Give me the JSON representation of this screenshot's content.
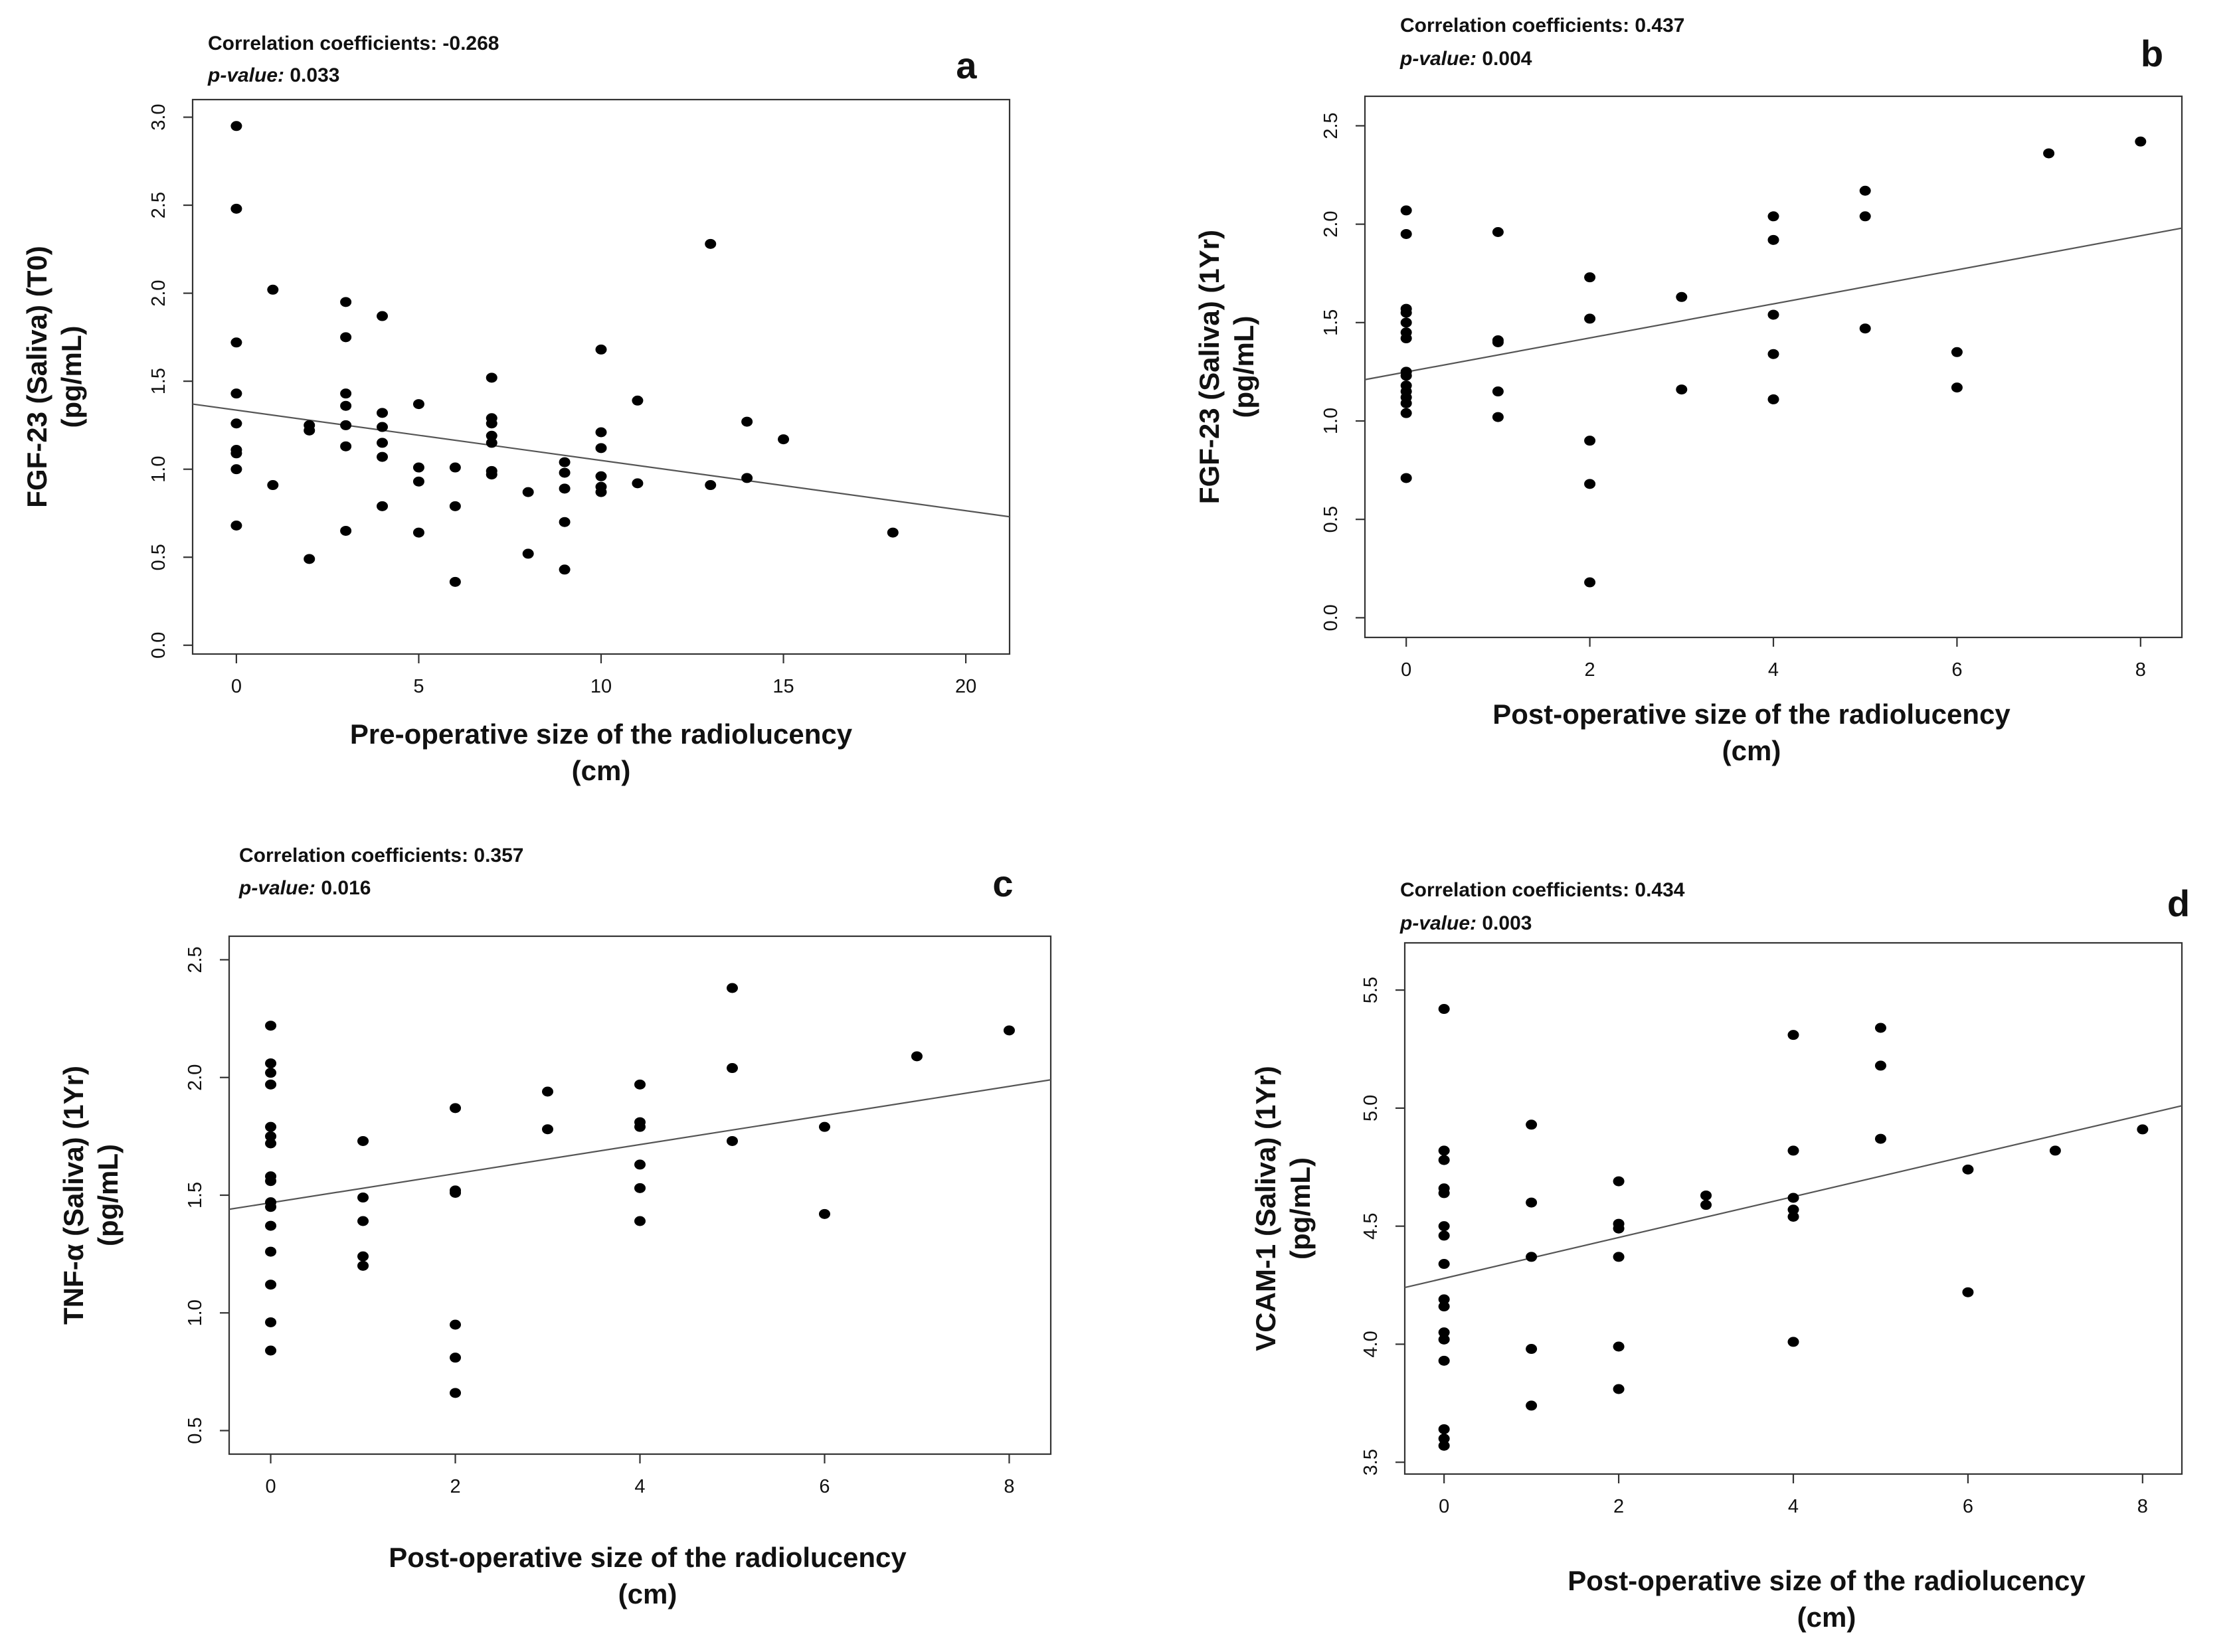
{
  "chart_data": [
    {
      "panel": "a",
      "type": "scatter",
      "stat_line1_label": "Correlation coefficients:",
      "stat_line1_value": "-0.268",
      "stat_line2_label": "p-value:",
      "stat_line2_value": "0.033",
      "ylabel_line1": "FGF-23 (Saliva) (T0)",
      "ylabel_line2": "(pg/mL)",
      "xlabel_line1": "Pre-operative size of the radiolucency",
      "xlabel_line2": "(cm)",
      "xlim": [
        -1.2,
        21.2
      ],
      "ylim": [
        -0.05,
        3.1
      ],
      "xticks": [
        0,
        5,
        10,
        15,
        20
      ],
      "xtick_labels": [
        "0",
        "5",
        "10",
        "15",
        "20"
      ],
      "yticks": [
        0.0,
        0.5,
        1.0,
        1.5,
        2.0,
        2.5,
        3.0
      ],
      "ytick_labels": [
        "0.0",
        "0.5",
        "1.0",
        "1.5",
        "2.0",
        "2.5",
        "3.0"
      ],
      "trend": {
        "x": [
          -1.2,
          21.2
        ],
        "y": [
          1.37,
          0.73
        ]
      },
      "points": [
        [
          0,
          2.95
        ],
        [
          0,
          2.48
        ],
        [
          0,
          1.72
        ],
        [
          0,
          1.43
        ],
        [
          0,
          1.26
        ],
        [
          0,
          1.11
        ],
        [
          0,
          1.09
        ],
        [
          0,
          1.0
        ],
        [
          0,
          0.68
        ],
        [
          1,
          2.02
        ],
        [
          1,
          0.91
        ],
        [
          2,
          1.25
        ],
        [
          2,
          1.22
        ],
        [
          2,
          0.49
        ],
        [
          3,
          1.95
        ],
        [
          3,
          1.75
        ],
        [
          3,
          1.43
        ],
        [
          3,
          1.36
        ],
        [
          3,
          1.25
        ],
        [
          3,
          1.13
        ],
        [
          3,
          0.65
        ],
        [
          4,
          1.87
        ],
        [
          4,
          1.32
        ],
        [
          4,
          1.24
        ],
        [
          4,
          1.15
        ],
        [
          4,
          1.07
        ],
        [
          4,
          0.79
        ],
        [
          5,
          1.37
        ],
        [
          5,
          1.01
        ],
        [
          5,
          0.93
        ],
        [
          5,
          0.64
        ],
        [
          6,
          1.01
        ],
        [
          6,
          0.79
        ],
        [
          6,
          0.36
        ],
        [
          7,
          1.52
        ],
        [
          7,
          1.29
        ],
        [
          7,
          1.26
        ],
        [
          7,
          1.19
        ],
        [
          7,
          1.15
        ],
        [
          7,
          0.99
        ],
        [
          7,
          0.97
        ],
        [
          8,
          0.87
        ],
        [
          8,
          0.52
        ],
        [
          9,
          1.04
        ],
        [
          9,
          0.98
        ],
        [
          9,
          0.89
        ],
        [
          9,
          0.7
        ],
        [
          9,
          0.43
        ],
        [
          10,
          1.68
        ],
        [
          10,
          1.21
        ],
        [
          10,
          1.12
        ],
        [
          10,
          0.96
        ],
        [
          10,
          0.9
        ],
        [
          10,
          0.87
        ],
        [
          11,
          1.39
        ],
        [
          11,
          0.92
        ],
        [
          13,
          2.28
        ],
        [
          13,
          0.91
        ],
        [
          14,
          1.27
        ],
        [
          14,
          0.95
        ],
        [
          15,
          1.17
        ],
        [
          18,
          0.64
        ]
      ]
    },
    {
      "panel": "b",
      "type": "scatter",
      "stat_line1_label": "Correlation coefficients:",
      "stat_line1_value": "0.437",
      "stat_line2_label": "p-value:",
      "stat_line2_value": "0.004",
      "ylabel_line1": "FGF-23 (Saliva) (1Yr)",
      "ylabel_line2": "(pg/mL)",
      "xlabel_line1": "Post-operative size of the radiolucency",
      "xlabel_line2": "(cm)",
      "xlim": [
        -0.45,
        8.45
      ],
      "ylim": [
        -0.1,
        2.65
      ],
      "xticks": [
        0,
        2,
        4,
        6,
        8
      ],
      "xtick_labels": [
        "0",
        "2",
        "4",
        "6",
        "8"
      ],
      "yticks": [
        0.0,
        0.5,
        1.0,
        1.5,
        2.0,
        2.5
      ],
      "ytick_labels": [
        "0.0",
        "0.5",
        "1.0",
        "1.5",
        "2.0",
        "2.5"
      ],
      "trend": {
        "x": [
          -0.45,
          8.45
        ],
        "y": [
          1.21,
          1.98
        ]
      },
      "points": [
        [
          0,
          2.07
        ],
        [
          0,
          1.95
        ],
        [
          0,
          1.57
        ],
        [
          0,
          1.55
        ],
        [
          0,
          1.5
        ],
        [
          0,
          1.45
        ],
        [
          0,
          1.42
        ],
        [
          0,
          1.25
        ],
        [
          0,
          1.23
        ],
        [
          0,
          1.18
        ],
        [
          0,
          1.15
        ],
        [
          0,
          1.12
        ],
        [
          0,
          1.09
        ],
        [
          0,
          1.04
        ],
        [
          0,
          0.71
        ],
        [
          1,
          1.96
        ],
        [
          1,
          1.41
        ],
        [
          1,
          1.4
        ],
        [
          1,
          1.15
        ],
        [
          1,
          1.02
        ],
        [
          2,
          1.73
        ],
        [
          2,
          1.52
        ],
        [
          2,
          0.9
        ],
        [
          2,
          0.68
        ],
        [
          2,
          0.18
        ],
        [
          3,
          1.63
        ],
        [
          3,
          1.16
        ],
        [
          4,
          2.04
        ],
        [
          4,
          1.92
        ],
        [
          4,
          1.54
        ],
        [
          4,
          1.34
        ],
        [
          4,
          1.11
        ],
        [
          5,
          2.17
        ],
        [
          5,
          2.04
        ],
        [
          5,
          1.47
        ],
        [
          6,
          1.35
        ],
        [
          6,
          1.17
        ],
        [
          7,
          2.36
        ],
        [
          8,
          2.42
        ]
      ]
    },
    {
      "panel": "c",
      "type": "scatter",
      "stat_line1_label": "Correlation coefficients:",
      "stat_line1_value": "0.357",
      "stat_line2_label": "p-value:",
      "stat_line2_value": "0.016",
      "ylabel_line1": "TNF-α (Saliva) (1Yr)",
      "ylabel_line2": "(pg/mL)",
      "xlabel_line1": "Post-operative size of the radiolucency",
      "xlabel_line2": "(cm)",
      "xlim": [
        -0.45,
        8.45
      ],
      "ylim": [
        0.4,
        2.6
      ],
      "xticks": [
        0,
        2,
        4,
        6,
        8
      ],
      "xtick_labels": [
        "0",
        "2",
        "4",
        "6",
        "8"
      ],
      "yticks": [
        0.5,
        1.0,
        1.5,
        2.0,
        2.5
      ],
      "ytick_labels": [
        "0.5",
        "1.0",
        "1.5",
        "2.0",
        "2.5"
      ],
      "trend": {
        "x": [
          -0.45,
          8.45
        ],
        "y": [
          1.44,
          1.99
        ]
      },
      "points": [
        [
          0,
          2.22
        ],
        [
          0,
          2.06
        ],
        [
          0,
          2.02
        ],
        [
          0,
          1.97
        ],
        [
          0,
          1.79
        ],
        [
          0,
          1.75
        ],
        [
          0,
          1.72
        ],
        [
          0,
          1.58
        ],
        [
          0,
          1.56
        ],
        [
          0,
          1.47
        ],
        [
          0,
          1.45
        ],
        [
          0,
          1.37
        ],
        [
          0,
          1.26
        ],
        [
          0,
          1.12
        ],
        [
          0,
          0.96
        ],
        [
          0,
          0.84
        ],
        [
          1,
          1.73
        ],
        [
          1,
          1.49
        ],
        [
          1,
          1.39
        ],
        [
          1,
          1.24
        ],
        [
          1,
          1.2
        ],
        [
          2,
          1.87
        ],
        [
          2,
          1.52
        ],
        [
          2,
          1.51
        ],
        [
          2,
          0.95
        ],
        [
          2,
          0.81
        ],
        [
          2,
          0.66
        ],
        [
          3,
          1.94
        ],
        [
          3,
          1.78
        ],
        [
          4,
          1.97
        ],
        [
          4,
          1.81
        ],
        [
          4,
          1.79
        ],
        [
          4,
          1.63
        ],
        [
          4,
          1.53
        ],
        [
          4,
          1.39
        ],
        [
          5,
          2.38
        ],
        [
          5,
          2.04
        ],
        [
          5,
          1.73
        ],
        [
          6,
          1.79
        ],
        [
          6,
          1.42
        ],
        [
          7,
          2.09
        ],
        [
          8,
          2.2
        ]
      ]
    },
    {
      "panel": "d",
      "type": "scatter",
      "stat_line1_label": "Correlation coefficients:",
      "stat_line1_value": "0.434",
      "stat_line2_label": "p-value:",
      "stat_line2_value": "0.003",
      "ylabel_line1": "VCAM-1 (Saliva) (1Yr)",
      "ylabel_line2": "(pg/mL)",
      "xlabel_line1": "Post-operative size of the radiolucency",
      "xlabel_line2": "(cm)",
      "xlim": [
        -0.45,
        8.45
      ],
      "ylim": [
        3.45,
        5.7
      ],
      "xticks": [
        0,
        2,
        4,
        6,
        8
      ],
      "xtick_labels": [
        "0",
        "2",
        "4",
        "6",
        "8"
      ],
      "yticks": [
        3.5,
        4.0,
        4.5,
        5.0,
        5.5
      ],
      "ytick_labels": [
        "3.5",
        "4.0",
        "4.5",
        "5.0",
        "5.5"
      ],
      "trend": {
        "x": [
          -0.45,
          8.45
        ],
        "y": [
          4.24,
          5.01
        ]
      },
      "points": [
        [
          0,
          5.42
        ],
        [
          0,
          4.82
        ],
        [
          0,
          4.78
        ],
        [
          0,
          4.66
        ],
        [
          0,
          4.64
        ],
        [
          0,
          4.5
        ],
        [
          0,
          4.46
        ],
        [
          0,
          4.34
        ],
        [
          0,
          4.19
        ],
        [
          0,
          4.16
        ],
        [
          0,
          4.05
        ],
        [
          0,
          4.02
        ],
        [
          0,
          3.93
        ],
        [
          0,
          3.64
        ],
        [
          0,
          3.6
        ],
        [
          0,
          3.57
        ],
        [
          1,
          4.93
        ],
        [
          1,
          4.6
        ],
        [
          1,
          4.37
        ],
        [
          1,
          3.98
        ],
        [
          1,
          3.74
        ],
        [
          2,
          4.69
        ],
        [
          2,
          4.51
        ],
        [
          2,
          4.49
        ],
        [
          2,
          4.37
        ],
        [
          2,
          3.99
        ],
        [
          2,
          3.81
        ],
        [
          3,
          4.63
        ],
        [
          3,
          4.59
        ],
        [
          4,
          5.31
        ],
        [
          4,
          4.82
        ],
        [
          4,
          4.62
        ],
        [
          4,
          4.57
        ],
        [
          4,
          4.54
        ],
        [
          4,
          4.01
        ],
        [
          5,
          5.34
        ],
        [
          5,
          5.18
        ],
        [
          5,
          4.87
        ],
        [
          6,
          4.74
        ],
        [
          6,
          4.22
        ],
        [
          7,
          4.82
        ],
        [
          8,
          4.91
        ]
      ]
    }
  ]
}
